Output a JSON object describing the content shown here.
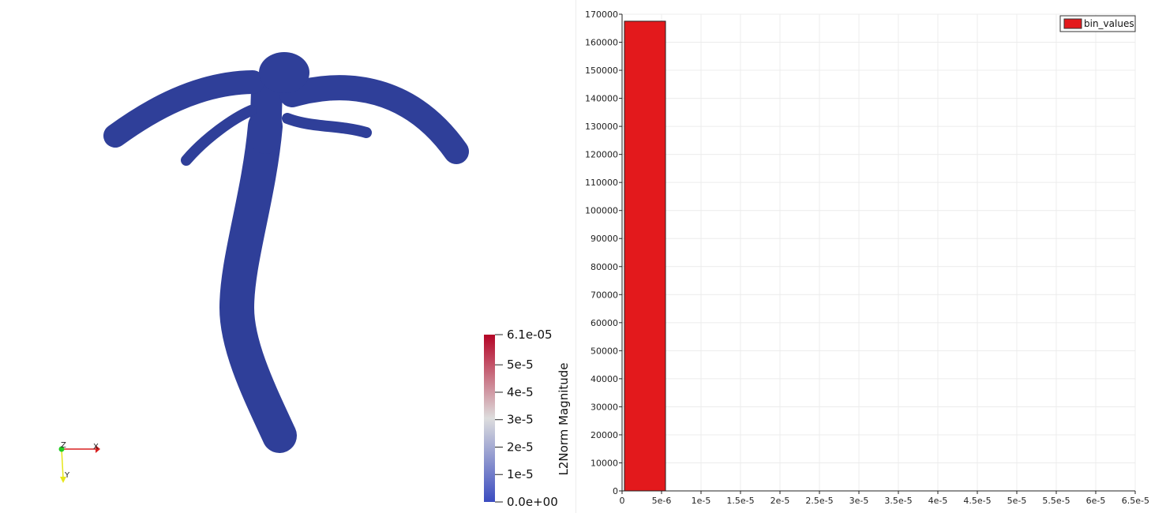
{
  "render_view": {
    "scalar_bar": {
      "title": "L2Norm Magnitude",
      "labels": [
        "6.1e-05",
        "5e-5",
        "4e-5",
        "3e-5",
        "2e-5",
        "1e-5",
        "0.0e+00"
      ],
      "label_values": [
        6.1e-05,
        5e-05,
        4e-05,
        3e-05,
        2e-05,
        1e-05,
        0
      ],
      "range": [
        0,
        6.1e-05
      ],
      "color_low": "#3b4cc0",
      "color_mid": "#dddddd",
      "color_high": "#b40426"
    },
    "axes": {
      "x_label": "X",
      "y_label": "Y",
      "z_label": "Z",
      "x_color": "#d92020",
      "y_color": "#e6e61a",
      "z_color": "#22cc22"
    },
    "mesh_color": "#2f3f99",
    "mesh_icon": "vessel-mesh"
  },
  "chart_data": {
    "type": "bar",
    "title": "",
    "xlabel": "",
    "ylabel": "",
    "bin_edges": [
      0,
      5.5e-06
    ],
    "series": [
      {
        "name": "bin_values",
        "values": [
          167500
        ]
      }
    ],
    "color": "#e3191c",
    "xlim": [
      0,
      6.5e-05
    ],
    "ylim": [
      0,
      170000
    ],
    "x_ticks": [
      0,
      5e-06,
      1e-05,
      1.5e-05,
      2e-05,
      2.5e-05,
      3e-05,
      3.5e-05,
      4e-05,
      4.5e-05,
      5e-05,
      5.5e-05,
      6e-05,
      6.5e-05
    ],
    "x_tick_labels": [
      "0",
      "5e-6",
      "1e-5",
      "1.5e-5",
      "2e-5",
      "2.5e-5",
      "3e-5",
      "3.5e-5",
      "4e-5",
      "4.5e-5",
      "5e-5",
      "5.5e-5",
      "6e-5",
      "6.5e-5"
    ],
    "y_ticks": [
      0,
      10000,
      20000,
      30000,
      40000,
      50000,
      60000,
      70000,
      80000,
      90000,
      100000,
      110000,
      120000,
      130000,
      140000,
      150000,
      160000,
      170000
    ],
    "y_tick_labels": [
      "0",
      "10000",
      "20000",
      "30000",
      "40000",
      "50000",
      "60000",
      "70000",
      "80000",
      "90000",
      "100000",
      "110000",
      "120000",
      "130000",
      "140000",
      "150000",
      "160000",
      "170000"
    ],
    "grid": true,
    "legend_position": "top-right"
  }
}
